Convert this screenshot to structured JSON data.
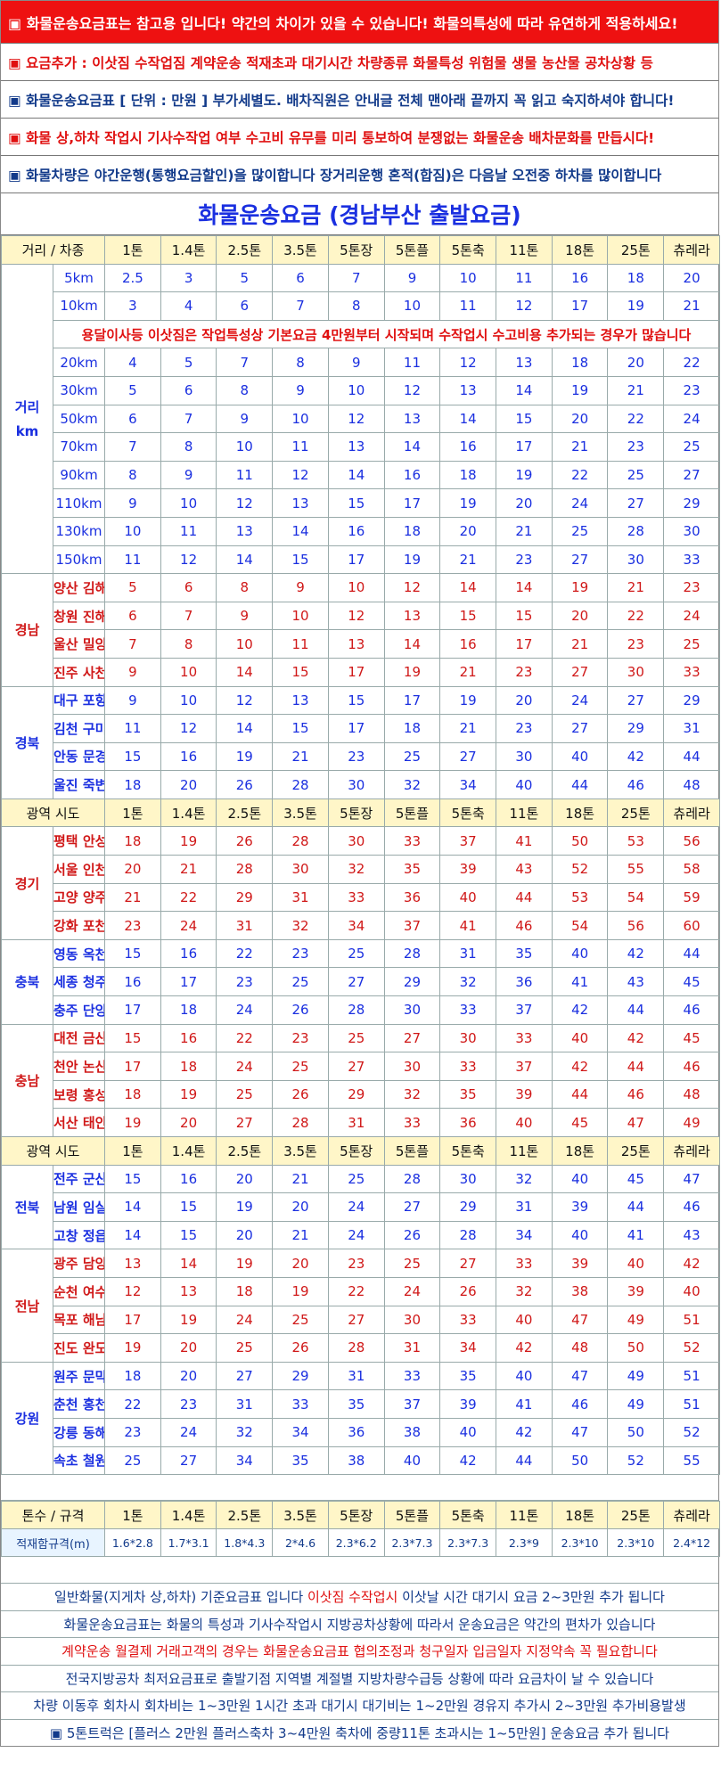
{
  "notices": [
    {
      "text": "▣ 화물운송요금표는 참고용 입니다! 약간의 차이가 있을 수 있습니다! 화물의특성에 따라 유연하게 적용하세요!",
      "style": "red-bg"
    },
    {
      "text": "▣ 요금추가 : 이삿짐 수작업짐 계약운송 적재초과 대기시간 차량종류 화물특성 위험물 생물 농산물 공차상황 등",
      "style": "red"
    },
    {
      "text": "▣ 화물운송요금표 [ 단위 : 만원 ] 부가세별도. 배차직원은 안내글 전체 맨아래 끝까지 꼭 읽고 숙지하셔야 합니다!",
      "style": "blue"
    },
    {
      "text": "▣ 화물 상,하차 작업시 기사수작업 여부 수고비 유무를 미리 통보하여 분쟁없는 화물운송 배차문화를 만듭시다!",
      "style": "red"
    },
    {
      "text": "▣ 화물차량은 야간운행(통행요금할인)을 많이합니다 장거리운행 혼적(합짐)은 다음날 오전중 하차를 많이합니다",
      "style": "blue"
    }
  ],
  "title": "화물운송요금 (경남부산 출발요금)",
  "header_first": "거리 / 차종",
  "header_region": "광역 시도",
  "vehicle_types": [
    "1톤",
    "1.4톤",
    "2.5톤",
    "3.5톤",
    "5톤장",
    "5톤플",
    "5톤축",
    "11톤",
    "18톤",
    "25톤",
    "츄레라"
  ],
  "distance_group": {
    "label_line1": "거리",
    "label_line2": "km"
  },
  "remark": "용달이사등 이삿짐은 작업특성상 기본요금 4만원부터 시작되며 수작업시 수고비용 추가되는 경우가 많습니다",
  "distance_rows": [
    {
      "label": "5km",
      "values": [
        "2.5",
        "3",
        "5",
        "6",
        "7",
        "9",
        "10",
        "11",
        "16",
        "18",
        "20"
      ]
    },
    {
      "label": "10km",
      "values": [
        "3",
        "4",
        "6",
        "7",
        "8",
        "10",
        "11",
        "12",
        "17",
        "19",
        "21"
      ]
    },
    {
      "label": "20km",
      "values": [
        "4",
        "5",
        "7",
        "8",
        "9",
        "11",
        "12",
        "13",
        "18",
        "20",
        "22"
      ]
    },
    {
      "label": "30km",
      "values": [
        "5",
        "6",
        "8",
        "9",
        "10",
        "12",
        "13",
        "14",
        "19",
        "21",
        "23"
      ]
    },
    {
      "label": "50km",
      "values": [
        "6",
        "7",
        "9",
        "10",
        "12",
        "13",
        "14",
        "15",
        "20",
        "22",
        "24"
      ]
    },
    {
      "label": "70km",
      "values": [
        "7",
        "8",
        "10",
        "11",
        "13",
        "14",
        "16",
        "17",
        "21",
        "23",
        "25"
      ]
    },
    {
      "label": "90km",
      "values": [
        "8",
        "9",
        "11",
        "12",
        "14",
        "16",
        "18",
        "19",
        "22",
        "25",
        "27"
      ]
    },
    {
      "label": "110km",
      "values": [
        "9",
        "10",
        "12",
        "13",
        "15",
        "17",
        "19",
        "20",
        "24",
        "27",
        "29"
      ]
    },
    {
      "label": "130km",
      "values": [
        "10",
        "11",
        "13",
        "14",
        "16",
        "18",
        "20",
        "21",
        "25",
        "28",
        "30"
      ]
    },
    {
      "label": "150km",
      "values": [
        "11",
        "12",
        "14",
        "15",
        "17",
        "19",
        "21",
        "23",
        "27",
        "30",
        "33"
      ]
    }
  ],
  "region_groups": [
    {
      "name": "경남",
      "color": "red",
      "rows": [
        {
          "label": "양산 김해",
          "values": [
            "5",
            "6",
            "8",
            "9",
            "10",
            "12",
            "14",
            "14",
            "19",
            "21",
            "23"
          ]
        },
        {
          "label": "창원 진해",
          "values": [
            "6",
            "7",
            "9",
            "10",
            "12",
            "13",
            "15",
            "15",
            "20",
            "22",
            "24"
          ]
        },
        {
          "label": "울산 밀양",
          "values": [
            "7",
            "8",
            "10",
            "11",
            "13",
            "14",
            "16",
            "17",
            "21",
            "23",
            "25"
          ]
        },
        {
          "label": "진주 사천",
          "values": [
            "9",
            "10",
            "14",
            "15",
            "17",
            "19",
            "21",
            "23",
            "27",
            "30",
            "33"
          ]
        }
      ]
    },
    {
      "name": "경북",
      "color": "blue",
      "rows": [
        {
          "label": "대구 포항",
          "values": [
            "9",
            "10",
            "12",
            "13",
            "15",
            "17",
            "19",
            "20",
            "24",
            "27",
            "29"
          ]
        },
        {
          "label": "김천 구미",
          "values": [
            "11",
            "12",
            "14",
            "15",
            "17",
            "18",
            "21",
            "23",
            "27",
            "29",
            "31"
          ]
        },
        {
          "label": "안동 문경",
          "values": [
            "15",
            "16",
            "19",
            "21",
            "23",
            "25",
            "27",
            "30",
            "40",
            "42",
            "44"
          ]
        },
        {
          "label": "울진 죽변",
          "values": [
            "18",
            "20",
            "26",
            "28",
            "30",
            "32",
            "34",
            "40",
            "44",
            "46",
            "48"
          ]
        }
      ]
    },
    {
      "header": true
    },
    {
      "name": "경기",
      "color": "red",
      "rows": [
        {
          "label": "평택 안성",
          "values": [
            "18",
            "19",
            "26",
            "28",
            "30",
            "33",
            "37",
            "41",
            "50",
            "53",
            "56"
          ]
        },
        {
          "label": "서울 인천",
          "values": [
            "20",
            "21",
            "28",
            "30",
            "32",
            "35",
            "39",
            "43",
            "52",
            "55",
            "58"
          ]
        },
        {
          "label": "고양 양주",
          "values": [
            "21",
            "22",
            "29",
            "31",
            "33",
            "36",
            "40",
            "44",
            "53",
            "54",
            "59"
          ]
        },
        {
          "label": "강화 포천",
          "values": [
            "23",
            "24",
            "31",
            "32",
            "34",
            "37",
            "41",
            "46",
            "54",
            "56",
            "60"
          ]
        }
      ]
    },
    {
      "name": "충북",
      "color": "blue",
      "rows": [
        {
          "label": "영동 옥천",
          "values": [
            "15",
            "16",
            "22",
            "23",
            "25",
            "28",
            "31",
            "35",
            "40",
            "42",
            "44"
          ]
        },
        {
          "label": "세종 청주",
          "values": [
            "16",
            "17",
            "23",
            "25",
            "27",
            "29",
            "32",
            "36",
            "41",
            "43",
            "45"
          ]
        },
        {
          "label": "충주 단양",
          "values": [
            "17",
            "18",
            "24",
            "26",
            "28",
            "30",
            "33",
            "37",
            "42",
            "44",
            "46"
          ]
        }
      ]
    },
    {
      "name": "충남",
      "color": "red",
      "rows": [
        {
          "label": "대전 금산",
          "values": [
            "15",
            "16",
            "22",
            "23",
            "25",
            "27",
            "30",
            "33",
            "40",
            "42",
            "45"
          ]
        },
        {
          "label": "천안 논산",
          "values": [
            "17",
            "18",
            "24",
            "25",
            "27",
            "30",
            "33",
            "37",
            "42",
            "44",
            "46"
          ]
        },
        {
          "label": "보령 홍성",
          "values": [
            "18",
            "19",
            "25",
            "26",
            "29",
            "32",
            "35",
            "39",
            "44",
            "46",
            "48"
          ]
        },
        {
          "label": "서산 태안",
          "values": [
            "19",
            "20",
            "27",
            "28",
            "31",
            "33",
            "36",
            "40",
            "45",
            "47",
            "49"
          ]
        }
      ]
    },
    {
      "header": true
    },
    {
      "name": "전북",
      "color": "blue",
      "rows": [
        {
          "label": "전주 군산",
          "values": [
            "15",
            "16",
            "20",
            "21",
            "25",
            "28",
            "30",
            "32",
            "40",
            "45",
            "47"
          ]
        },
        {
          "label": "남원 임실",
          "values": [
            "14",
            "15",
            "19",
            "20",
            "24",
            "27",
            "29",
            "31",
            "39",
            "44",
            "46"
          ]
        },
        {
          "label": "고창 정읍",
          "values": [
            "14",
            "15",
            "20",
            "21",
            "24",
            "26",
            "28",
            "34",
            "40",
            "41",
            "43"
          ]
        }
      ]
    },
    {
      "name": "전남",
      "color": "red",
      "rows": [
        {
          "label": "광주 담양",
          "values": [
            "13",
            "14",
            "19",
            "20",
            "23",
            "25",
            "27",
            "33",
            "39",
            "40",
            "42"
          ]
        },
        {
          "label": "순천 여수",
          "values": [
            "12",
            "13",
            "18",
            "19",
            "22",
            "24",
            "26",
            "32",
            "38",
            "39",
            "40"
          ]
        },
        {
          "label": "목포 해남",
          "values": [
            "17",
            "19",
            "24",
            "25",
            "27",
            "30",
            "33",
            "40",
            "47",
            "49",
            "51"
          ]
        },
        {
          "label": "진도 완도",
          "values": [
            "19",
            "20",
            "25",
            "26",
            "28",
            "31",
            "34",
            "42",
            "48",
            "50",
            "52"
          ]
        }
      ]
    },
    {
      "name": "강원",
      "color": "blue",
      "rows": [
        {
          "label": "원주 문막",
          "values": [
            "18",
            "20",
            "27",
            "29",
            "31",
            "33",
            "35",
            "40",
            "47",
            "49",
            "51"
          ]
        },
        {
          "label": "춘천 홍천",
          "values": [
            "22",
            "23",
            "31",
            "33",
            "35",
            "37",
            "39",
            "41",
            "46",
            "49",
            "51"
          ]
        },
        {
          "label": "강릉 동해",
          "values": [
            "23",
            "24",
            "32",
            "34",
            "36",
            "38",
            "40",
            "42",
            "47",
            "50",
            "52"
          ]
        },
        {
          "label": "속초 철원",
          "values": [
            "25",
            "27",
            "34",
            "35",
            "38",
            "40",
            "42",
            "44",
            "50",
            "52",
            "55"
          ]
        }
      ]
    }
  ],
  "spec": {
    "header_label": "톤수 / 규격",
    "row_label": "적재함규격(m)",
    "values": [
      "1.6*2.8",
      "1.7*3.1",
      "1.8*4.3",
      "2*4.6",
      "2.3*6.2",
      "2.3*7.3",
      "2.3*7.3",
      "2.3*9",
      "2.3*10",
      "2.3*10",
      "2.4*12"
    ]
  },
  "footer": [
    {
      "parts": [
        {
          "text": "일반화물(지게차 상,하차) 기준요금표 입니다 ",
          "color": "blue"
        },
        {
          "text": "이삿짐 수작업시",
          "color": "red"
        },
        {
          "text": " 이삿날 시간 대기시 요금 2~3만원 추가 됩니다",
          "color": "blue"
        }
      ]
    },
    {
      "parts": [
        {
          "text": "화물운송요금표는 화물의 특성과 기사수작업시 지방공차상황에 따라서 운송요금은 약간의 편차가 있습니다",
          "color": "blue"
        }
      ]
    },
    {
      "parts": [
        {
          "text": "계약운송 월결제 거래고객의 경우는 화물운송요금표 협의조정과 청구일자 입금일자 지정약속 꼭 필요합니다",
          "color": "red"
        }
      ]
    },
    {
      "parts": [
        {
          "text": "전국지방공차 최저요금표로 출발기점 지역별 계절별 지방차량수급등 상황에 따라 요금차이 날 수 있습니다",
          "color": "blue"
        }
      ]
    },
    {
      "parts": [
        {
          "text": "차량 이동후 회차시 회차비는 1~3만원 1시간 초과 대기시 대기비는 1~2만원 경유지 추가시 2~3만원 추가비용발생",
          "color": "blue"
        }
      ]
    },
    {
      "parts": [
        {
          "text": "▣ 5톤트럭은 [플러스 2만원 플러스축차 3~4만원 축차에 중량11톤 초과시는 1~5만원] 운송요금 추가 됩니다",
          "color": "blue"
        }
      ]
    }
  ],
  "colors": {
    "blue": "#1a2fe0",
    "red": "#d01818",
    "header_bg": "#fff6c8"
  }
}
